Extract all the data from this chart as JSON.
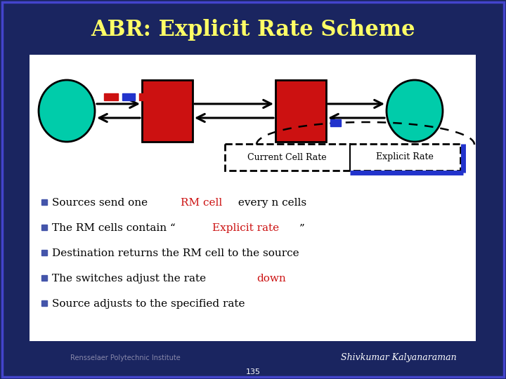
{
  "title": "ABR: Explicit Rate Scheme",
  "title_color": "#FFFF66",
  "title_fontsize": 22,
  "bg_color": "#1a2560",
  "slide_bg": "#ffffff",
  "footer_left": "Rensselaer Polytechnic Institute",
  "footer_right": "Shivkumar Kalyanaraman",
  "page_num": "135",
  "diagram": {
    "circle_color": "#00ccaa",
    "rect_color": "#cc1111",
    "dashed_red_color": "#cc1111",
    "dashed_blue_color": "#2233cc"
  },
  "bullets": [
    {
      "parts": [
        {
          "text": "Sources send one ",
          "color": "#000000"
        },
        {
          "text": "RM cell",
          "color": "#cc1111"
        },
        {
          "text": " every n cells",
          "color": "#000000"
        }
      ]
    },
    {
      "parts": [
        {
          "text": "The RM cells contain “",
          "color": "#000000"
        },
        {
          "text": "Explicit rate",
          "color": "#cc1111"
        },
        {
          "text": "”",
          "color": "#000000"
        }
      ]
    },
    {
      "parts": [
        {
          "text": "Destination returns the RM cell to the source",
          "color": "#000000"
        }
      ]
    },
    {
      "parts": [
        {
          "text": "The switches adjust the rate ",
          "color": "#000000"
        },
        {
          "text": "down",
          "color": "#cc1111"
        }
      ]
    },
    {
      "parts": [
        {
          "text": "Source adjusts to the specified rate",
          "color": "#000000"
        }
      ]
    }
  ],
  "legend": {
    "current_cell_rate": "Current Cell Rate",
    "explicit_rate": "Explicit Rate"
  }
}
